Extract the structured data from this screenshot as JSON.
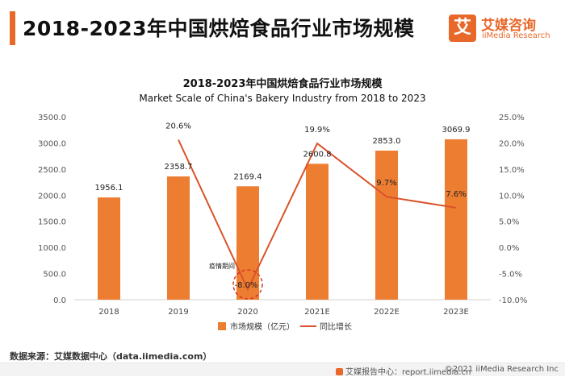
{
  "header": {
    "title": "2018-2023年中国烘焙食品行业市场规模"
  },
  "logo": {
    "mark": "艾",
    "name_cn": "艾媒咨询",
    "name_en": "iiMedia Research"
  },
  "chart_data": {
    "type": "bar",
    "title": "2018-2023年中国烘焙食品行业市场规模",
    "subtitle": "Market Scale of China's Bakery Industry from 2018 to 2023",
    "categories": [
      "2018",
      "2019",
      "2020",
      "2021E",
      "2022E",
      "2023E"
    ],
    "series": [
      {
        "name": "市场规模（亿元）",
        "type": "bar",
        "axis": "left",
        "color": "#ed7d31",
        "values": [
          1956.1,
          2358.7,
          2169.4,
          2600.8,
          2853.0,
          3069.9
        ],
        "labels": [
          "1956.1",
          "2358.7",
          "2169.4",
          "2600.8",
          "2853.0",
          "3069.9"
        ]
      },
      {
        "name": "同比增长",
        "type": "line",
        "axis": "right",
        "color": "#d9532b",
        "values": [
          null,
          20.6,
          -8.0,
          19.9,
          9.7,
          7.6
        ],
        "labels": [
          "",
          "20.6%",
          "-8.0%",
          "19.9%",
          "9.7%",
          "7.6%"
        ]
      }
    ],
    "y_left": {
      "min": 0,
      "max": 3500,
      "ticks": [
        "0.0",
        "500.0",
        "1000.0",
        "1500.0",
        "2000.0",
        "2500.0",
        "3000.0",
        "3500.0"
      ]
    },
    "y_right": {
      "min": -10,
      "max": 25,
      "ticks": [
        "-10.0%",
        "-5.0%",
        "0.0%",
        "5.0%",
        "10.0%",
        "15.0%",
        "20.0%",
        "25.0%"
      ]
    },
    "annotation": {
      "text": "疫情期间",
      "category": "2020"
    },
    "legend_position": "bottom-center",
    "grid": false
  },
  "source": "数据来源：艾媒数据中心（data.iimedia.com）",
  "footer": {
    "left": "艾媒报告中心：report.iimedia.cn",
    "right": "©2021  iiMedia Research  Inc"
  }
}
